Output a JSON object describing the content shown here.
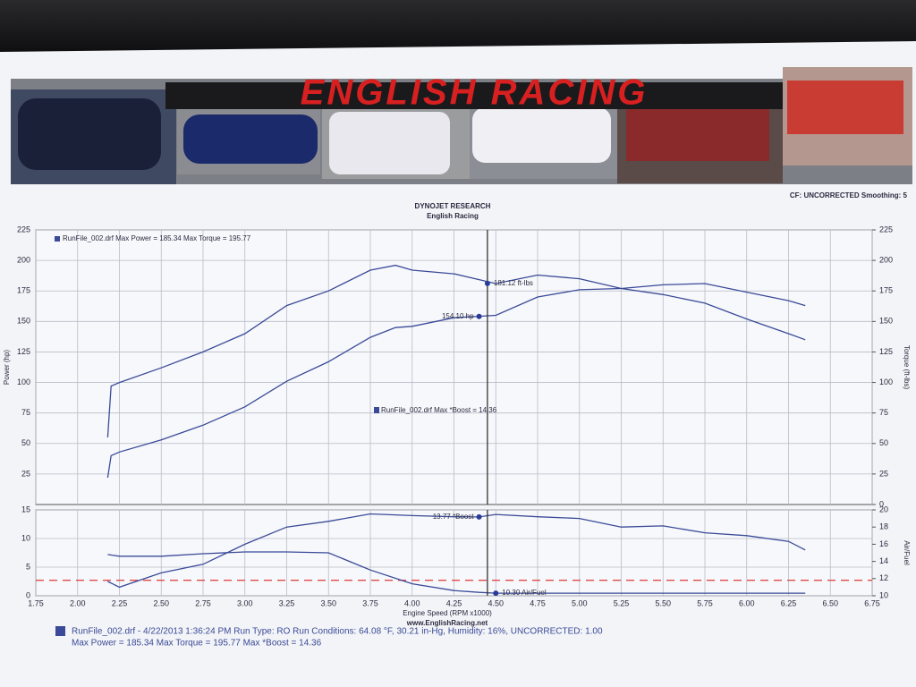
{
  "header": {
    "banner": "ENGLISH RACING",
    "settings": "CF: UNCORRECTED  Smoothing: 5"
  },
  "chart_data": [
    {
      "type": "line",
      "title": "DYNOJET RESEARCH",
      "subtitle": "English Racing",
      "y_label": "Power (hp)",
      "y2_label": "Torque (ft-lbs)",
      "legend_text": "RunFile_002.drf Max Power = 185.34    Max Torque = 195.77",
      "note": "RunFile_002.drf Max *Boost = 14.36",
      "x": [
        2.18,
        2.2,
        2.25,
        2.5,
        2.75,
        3.0,
        3.25,
        3.5,
        3.75,
        3.9,
        4.0,
        4.25,
        4.5,
        4.75,
        5.0,
        5.25,
        5.5,
        5.75,
        6.0,
        6.25,
        6.35
      ],
      "series": [
        {
          "color": "#3a4a98",
          "values": [
            22,
            40,
            43,
            53,
            65,
            80,
            101,
            117,
            137,
            145,
            146,
            153,
            155,
            170,
            176,
            177,
            180,
            181,
            174,
            167,
            163
          ]
        },
        {
          "color": "#3a4a98",
          "axis": "y2",
          "values": [
            55,
            97,
            100,
            112,
            125,
            140,
            163,
            175,
            192,
            196,
            192,
            189,
            181,
            188,
            185,
            177,
            172,
            165,
            152,
            140,
            135
          ]
        }
      ],
      "annotations": [
        {
          "text": "181.12 ft-lbs",
          "x": 4.45,
          "y": 181.12,
          "axis": "y2"
        },
        {
          "text": "154.10 hp",
          "x": 4.4,
          "y": 154.1
        }
      ],
      "cursor_x": 4.45,
      "xlim": [
        1.75,
        6.75
      ],
      "ylim": [
        0,
        225
      ],
      "yticks": [
        25,
        50,
        75,
        100,
        125,
        150,
        175,
        200,
        225
      ],
      "y2lim": [
        0,
        225
      ],
      "y2ticks": [
        0,
        25,
        50,
        75,
        100,
        125,
        150,
        175,
        200,
        225
      ],
      "grid": true
    },
    {
      "type": "line",
      "x_label": "Engine Speed (RPM x1000)",
      "y2_label": "Air/Fuel",
      "x": [
        2.18,
        2.25,
        2.5,
        2.75,
        3.0,
        3.25,
        3.5,
        3.75,
        4.0,
        4.25,
        4.4,
        4.5,
        4.75,
        5.0,
        5.25,
        5.5,
        5.75,
        6.0,
        6.25,
        6.35
      ],
      "series": [
        {
          "color": "#3a4a98",
          "values": [
            2.5,
            1.5,
            4,
            5.5,
            9,
            12,
            13,
            14.3,
            14,
            13.8,
            13.77,
            14.2,
            13.8,
            13.5,
            12,
            12.2,
            11,
            10.5,
            9.5,
            8
          ]
        },
        {
          "color": "#3a4a98",
          "axis": "y2",
          "values": [
            14.8,
            14.6,
            14.6,
            14.9,
            15.1,
            15.1,
            15.0,
            13.0,
            11.4,
            10.6,
            10.4,
            10.3,
            10.3,
            10.3,
            10.3,
            10.3,
            10.3,
            10.3,
            10.3,
            10.3
          ]
        }
      ],
      "annotations": [
        {
          "text": "13.77 *Boost",
          "x": 4.4,
          "y": 13.77
        },
        {
          "text": "10.30 Air/Fuel",
          "x": 4.5,
          "y": 10.3,
          "axis": "y2"
        }
      ],
      "hlines": [
        {
          "value": 11.8,
          "axis": "y2",
          "color": "#e04848"
        }
      ],
      "cursor_x": 4.45,
      "xlim": [
        1.75,
        6.75
      ],
      "xticks": [
        1.75,
        {
          "value": 2,
          "label": "2.00"
        },
        2.25,
        {
          "value": 2.5,
          "label": "2.50"
        },
        2.75,
        {
          "value": 3,
          "label": "3.00"
        },
        3.25,
        {
          "value": 3.5,
          "label": "3.50"
        },
        3.75,
        {
          "value": 4,
          "label": "4.00"
        },
        4.25,
        {
          "value": 4.5,
          "label": "4.50"
        },
        4.75,
        {
          "value": 5,
          "label": "5.00"
        },
        5.25,
        {
          "value": 5.5,
          "label": "5.50"
        },
        5.75,
        {
          "value": 6,
          "label": "6.00"
        },
        6.25,
        {
          "value": 6.5,
          "label": "6.50"
        },
        6.75
      ],
      "ylim": [
        0,
        15
      ],
      "yticks": [
        0,
        5,
        10,
        15
      ],
      "y2lim": [
        10,
        20
      ],
      "y2ticks": [
        10,
        12,
        14,
        16,
        18,
        20
      ],
      "grid": true
    }
  ],
  "footer": {
    "url": "www.EnglishRacing.net",
    "line1": "RunFile_002.drf - 4/22/2013 1:36:24 PM  Run Type: RO  Run Conditions: 64.08 °F, 30.21 in-Hg,  Humidity:  16%, UNCORRECTED: 1.00",
    "line2": "Max Power = 185.34  Max Torque = 195.77  Max *Boost = 14.36"
  }
}
